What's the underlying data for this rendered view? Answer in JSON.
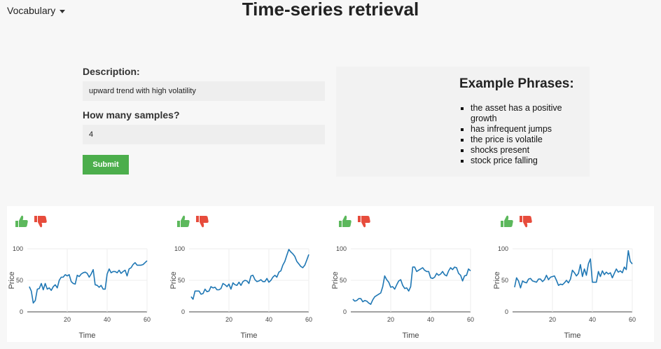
{
  "header": {
    "menu_label": "Vocabulary",
    "title": "Time-series retrieval"
  },
  "form": {
    "description_label": "Description:",
    "description_value": "upward trend with high volatility",
    "samples_label": "How many samples?",
    "samples_value": "4",
    "submit_label": "Submit"
  },
  "examples": {
    "heading": "Example Phrases:",
    "items": [
      "the asset has a positive growth",
      "has infrequent jumps",
      "the price is volatile",
      "shocks present",
      "stock price falling"
    ]
  },
  "colors": {
    "line": "#1f77b4",
    "thumb_up": "#5cb85c",
    "thumb_down": "#e74c3c",
    "submit": "#4cae4c"
  },
  "chart_data": [
    {
      "type": "line",
      "xlabel": "Time",
      "ylabel": "Price",
      "xlim": [
        0,
        60
      ],
      "ylim": [
        0,
        100
      ],
      "xticks": [
        20,
        40,
        60
      ],
      "yticks": [
        0,
        50,
        100
      ],
      "x": [
        1,
        2,
        3,
        4,
        5,
        6,
        7,
        8,
        9,
        10,
        11,
        12,
        13,
        14,
        15,
        16,
        17,
        18,
        19,
        20,
        21,
        22,
        23,
        24,
        25,
        26,
        27,
        28,
        29,
        30,
        31,
        32,
        33,
        34,
        35,
        36,
        37,
        38,
        39,
        40,
        41,
        42,
        43,
        44,
        45,
        46,
        47,
        48,
        49,
        50,
        51,
        52,
        53,
        54,
        55,
        56,
        57,
        58,
        59,
        60
      ],
      "y": [
        40,
        33,
        14,
        18,
        36,
        37,
        45,
        35,
        45,
        36,
        38,
        34,
        40,
        43,
        38,
        50,
        55,
        55,
        59,
        57,
        59,
        48,
        45,
        44,
        58,
        56,
        60,
        62,
        63,
        61,
        55,
        60,
        67,
        43,
        42,
        39,
        42,
        36,
        36,
        60,
        68,
        62,
        64,
        64,
        62,
        66,
        61,
        64,
        66,
        57,
        68,
        70,
        75,
        78,
        74,
        74,
        74,
        75,
        78,
        81
      ]
    },
    {
      "type": "line",
      "xlabel": "Time",
      "ylabel": "Price",
      "xlim": [
        0,
        60
      ],
      "ylim": [
        0,
        100
      ],
      "xticks": [
        20,
        40,
        60
      ],
      "yticks": [
        0,
        50,
        100
      ],
      "x": [
        1,
        2,
        3,
        4,
        5,
        6,
        7,
        8,
        9,
        10,
        11,
        12,
        13,
        14,
        15,
        16,
        17,
        18,
        19,
        20,
        21,
        22,
        23,
        24,
        25,
        26,
        27,
        28,
        29,
        30,
        31,
        32,
        33,
        34,
        35,
        36,
        37,
        38,
        39,
        40,
        41,
        42,
        43,
        44,
        45,
        46,
        47,
        48,
        49,
        50,
        51,
        52,
        53,
        54,
        55,
        56,
        57,
        58,
        59,
        60
      ],
      "y": [
        24,
        20,
        33,
        33,
        33,
        28,
        29,
        36,
        32,
        33,
        40,
        38,
        39,
        35,
        35,
        37,
        45,
        43,
        40,
        44,
        36,
        46,
        43,
        42,
        47,
        42,
        48,
        50,
        49,
        45,
        57,
        58,
        51,
        48,
        49,
        51,
        48,
        48,
        53,
        47,
        50,
        55,
        58,
        55,
        63,
        65,
        74,
        80,
        90,
        99,
        95,
        92,
        88,
        80,
        76,
        72,
        70,
        74,
        82,
        91
      ]
    },
    {
      "type": "line",
      "xlabel": "Time",
      "ylabel": "Price",
      "xlim": [
        0,
        60
      ],
      "ylim": [
        0,
        100
      ],
      "xticks": [
        20,
        40,
        60
      ],
      "yticks": [
        0,
        50,
        100
      ],
      "x": [
        1,
        2,
        3,
        4,
        5,
        6,
        7,
        8,
        9,
        10,
        11,
        12,
        13,
        14,
        15,
        16,
        17,
        18,
        19,
        20,
        21,
        22,
        23,
        24,
        25,
        26,
        27,
        28,
        29,
        30,
        31,
        32,
        33,
        34,
        35,
        36,
        37,
        38,
        39,
        40,
        41,
        42,
        43,
        44,
        45,
        46,
        47,
        48,
        49,
        50,
        51,
        52,
        53,
        54,
        55,
        56,
        57,
        58,
        59,
        60
      ],
      "y": [
        20,
        17,
        18,
        21,
        21,
        16,
        18,
        17,
        14,
        12,
        19,
        24,
        26,
        28,
        30,
        40,
        57,
        51,
        47,
        39,
        40,
        36,
        43,
        49,
        51,
        42,
        37,
        38,
        33,
        40,
        71,
        71,
        64,
        66,
        68,
        70,
        66,
        64,
        64,
        54,
        53,
        55,
        61,
        58,
        60,
        64,
        59,
        57,
        65,
        70,
        67,
        71,
        70,
        61,
        58,
        49,
        57,
        58,
        68,
        65
      ]
    },
    {
      "type": "line",
      "xlabel": "Time",
      "ylabel": "Price",
      "xlim": [
        0,
        60
      ],
      "ylim": [
        0,
        100
      ],
      "xticks": [
        20,
        40,
        60
      ],
      "yticks": [
        0,
        50,
        100
      ],
      "x": [
        1,
        2,
        3,
        4,
        5,
        6,
        7,
        8,
        9,
        10,
        11,
        12,
        13,
        14,
        15,
        16,
        17,
        18,
        19,
        20,
        21,
        22,
        23,
        24,
        25,
        26,
        27,
        28,
        29,
        30,
        31,
        32,
        33,
        34,
        35,
        36,
        37,
        38,
        39,
        40,
        41,
        42,
        43,
        44,
        45,
        46,
        47,
        48,
        49,
        50,
        51,
        52,
        53,
        54,
        55,
        56,
        57,
        58,
        59,
        60
      ],
      "y": [
        39,
        54,
        49,
        38,
        49,
        47,
        46,
        52,
        53,
        49,
        48,
        47,
        52,
        52,
        48,
        51,
        58,
        51,
        55,
        56,
        57,
        50,
        42,
        44,
        43,
        46,
        50,
        46,
        52,
        66,
        62,
        57,
        61,
        75,
        56,
        68,
        58,
        76,
        84,
        47,
        47,
        47,
        64,
        56,
        65,
        59,
        63,
        60,
        62,
        54,
        61,
        68,
        63,
        65,
        62,
        71,
        67,
        97,
        80,
        76
      ]
    }
  ]
}
